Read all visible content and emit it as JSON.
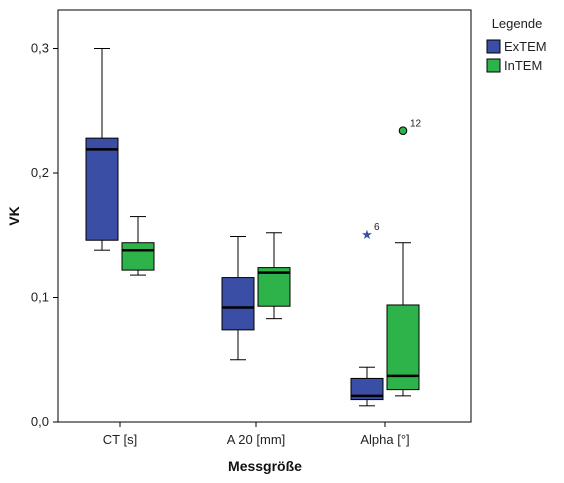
{
  "chart_data": {
    "type": "boxplot",
    "xlabel": "Messgröße",
    "ylabel": "VK",
    "ylim": [
      0.0,
      0.32
    ],
    "yticks": [
      0.0,
      0.1,
      0.2,
      0.3
    ],
    "ytick_labels": [
      "0,0",
      "0,1",
      "0,2",
      "0,3"
    ],
    "categories": [
      "CT [s]",
      "A 20 [mm]",
      "Alpha [°]"
    ],
    "grid": false,
    "legend": {
      "title": "Legende",
      "position": "top-right"
    },
    "series": [
      {
        "name": "ExTEM",
        "color": "#3b4ea5",
        "boxes": [
          {
            "min": 0.138,
            "q1": 0.146,
            "median": 0.219,
            "q3": 0.228,
            "max": 0.3,
            "outliers": []
          },
          {
            "min": 0.05,
            "q1": 0.074,
            "median": 0.092,
            "q3": 0.116,
            "max": 0.149,
            "outliers": []
          },
          {
            "min": 0.013,
            "q1": 0.018,
            "median": 0.021,
            "q3": 0.035,
            "max": 0.044,
            "outliers": [
              {
                "value": 0.151,
                "label": "6",
                "marker": "star"
              }
            ]
          }
        ]
      },
      {
        "name": "InTEM",
        "color": "#2db34a",
        "boxes": [
          {
            "min": 0.118,
            "q1": 0.122,
            "median": 0.138,
            "q3": 0.144,
            "max": 0.165,
            "outliers": []
          },
          {
            "min": 0.083,
            "q1": 0.093,
            "median": 0.12,
            "q3": 0.124,
            "max": 0.152,
            "outliers": []
          },
          {
            "min": 0.021,
            "q1": 0.026,
            "median": 0.037,
            "q3": 0.094,
            "max": 0.144,
            "outliers": [
              {
                "value": 0.234,
                "label": "12",
                "marker": "circle"
              }
            ]
          }
        ]
      }
    ]
  }
}
